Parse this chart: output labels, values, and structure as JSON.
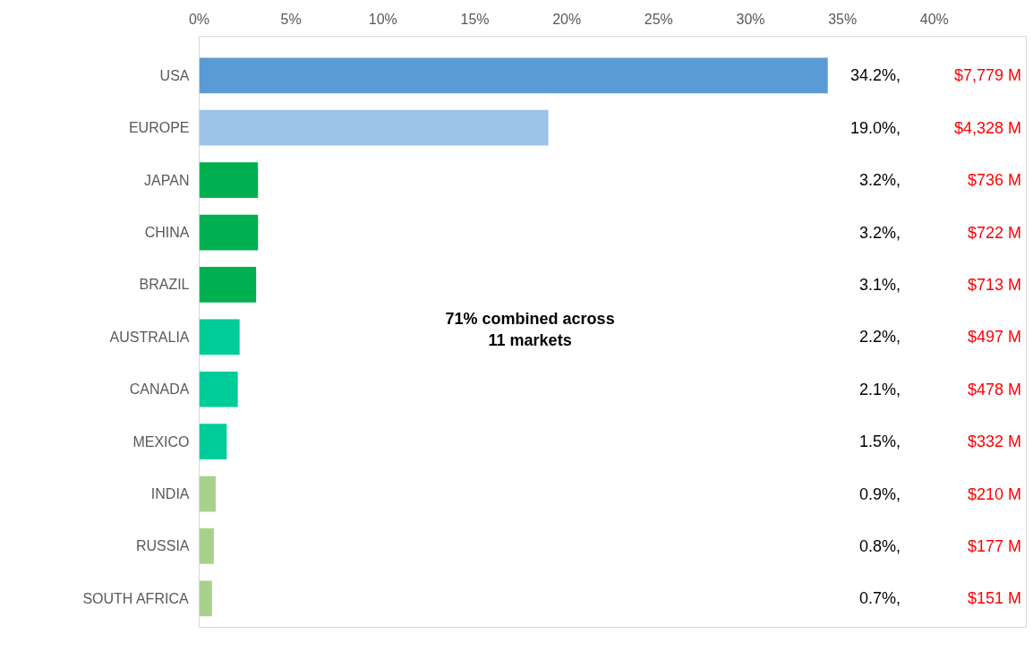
{
  "chart_data": {
    "type": "bar",
    "orientation": "horizontal",
    "categories": [
      "USA",
      "EUROPE",
      "JAPAN",
      "CHINA",
      "BRAZIL",
      "AUSTRALIA",
      "CANADA",
      "MEXICO",
      "INDIA",
      "RUSSIA",
      "SOUTH AFRICA"
    ],
    "values": [
      34.2,
      19.0,
      3.2,
      3.2,
      3.1,
      2.2,
      2.1,
      1.5,
      0.9,
      0.8,
      0.7
    ],
    "colors": [
      "#5b9bd5",
      "#9dc3e6",
      "#00b050",
      "#00b050",
      "#00b050",
      "#00cc99",
      "#00cc99",
      "#00cc99",
      "#a9d18e",
      "#a9d18e",
      "#a9d18e"
    ],
    "value_labels": [
      "34.2%, $7,779 M",
      "19.0%, $4,328 M",
      "3.2%, $736 M",
      "3.2%, $722 M",
      "3.1%, $713 M",
      "2.2%, $497 M",
      "2.1%, $478 M",
      "1.5%, $332 M",
      "0.9%, $210 M",
      "0.8%, $177 M",
      "0.7%, $151 M"
    ],
    "xlim": [
      0,
      45
    ],
    "xticks": [
      {
        "value": 0,
        "label": "0%"
      },
      {
        "value": 5,
        "label": "5%"
      },
      {
        "value": 10,
        "label": "10%"
      },
      {
        "value": 15,
        "label": "15%"
      },
      {
        "value": 20,
        "label": "20%"
      },
      {
        "value": 25,
        "label": "25%"
      },
      {
        "value": 30,
        "label": "30%"
      },
      {
        "value": 35,
        "label": "35%"
      },
      {
        "value": 40,
        "label": "40%"
      }
    ],
    "annotations": [
      "71% combined across\n11 markets"
    ],
    "grid": false
  }
}
